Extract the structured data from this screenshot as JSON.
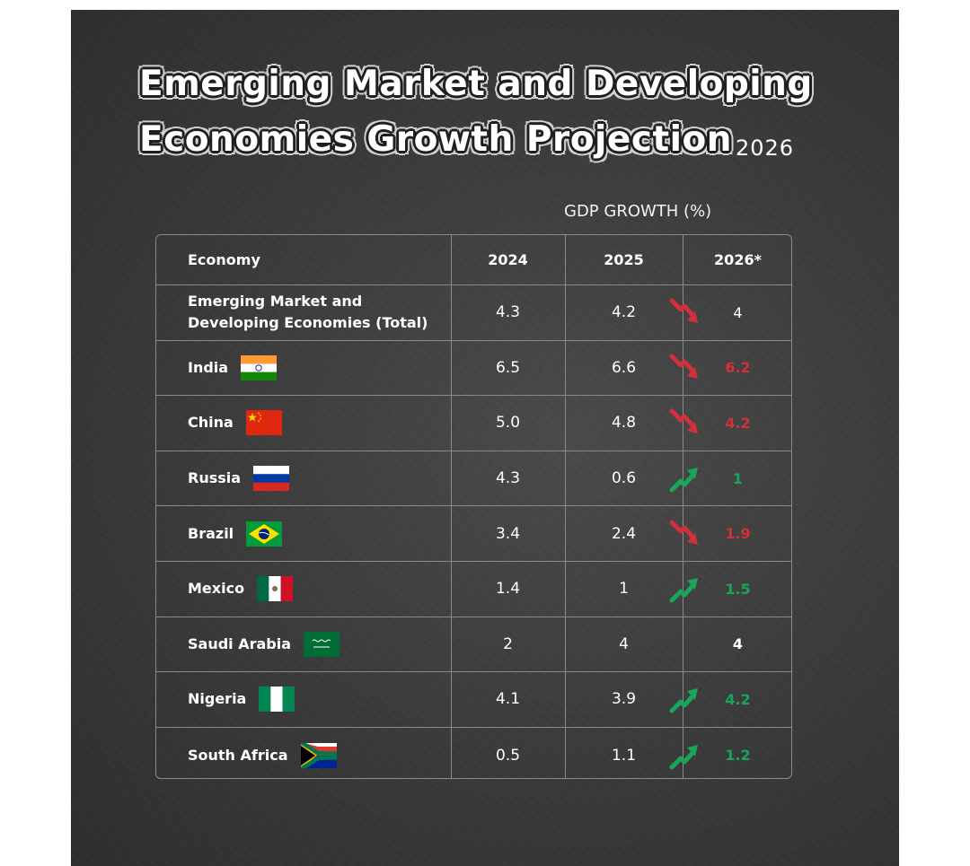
{
  "title": {
    "line1": "Emerging Market and Developing",
    "line2": "Economies Growth Projection",
    "year": "2026"
  },
  "subtitle": "GDP GROWTH (%)",
  "colors": {
    "down": "#d0313b",
    "up": "#1aa55a",
    "background": "#3a3a3a",
    "grid": "#8a8a8a"
  },
  "chart_data": {
    "type": "table",
    "columns": [
      "Economy",
      "2024",
      "2025",
      "2026*"
    ],
    "rows": [
      {
        "economy": "Emerging Market and Developing Economies (Total)",
        "economy_lines": [
          "Emerging Market and",
          "Developing Economies (Total)"
        ],
        "flag": "",
        "y2024": "4.3",
        "y2025": "4.2",
        "y2026": "4",
        "trend": "down"
      },
      {
        "economy": "India",
        "economy_lines": [
          "India"
        ],
        "flag": "india-flag-icon",
        "y2024": "6.5",
        "y2025": "6.6",
        "y2026": "6.2",
        "trend": "down"
      },
      {
        "economy": "China",
        "economy_lines": [
          "China"
        ],
        "flag": "china-flag-icon",
        "y2024": "5.0",
        "y2025": "4.8",
        "y2026": "4.2",
        "trend": "down"
      },
      {
        "economy": "Russia",
        "economy_lines": [
          "Russia"
        ],
        "flag": "russia-flag-icon",
        "y2024": "4.3",
        "y2025": "0.6",
        "y2026": "1",
        "trend": "up"
      },
      {
        "economy": "Brazil",
        "economy_lines": [
          "Brazil"
        ],
        "flag": "brazil-flag-icon",
        "y2024": "3.4",
        "y2025": "2.4",
        "y2026": "1.9",
        "trend": "down"
      },
      {
        "economy": "Mexico",
        "economy_lines": [
          "Mexico"
        ],
        "flag": "mexico-flag-icon",
        "y2024": "1.4",
        "y2025": "1",
        "y2026": "1.5",
        "trend": "up"
      },
      {
        "economy": "Saudi Arabia",
        "economy_lines": [
          "Saudi Arabia"
        ],
        "flag": "saudi-arabia-flag-icon",
        "y2024": "2",
        "y2025": "4",
        "y2026": "4",
        "trend": "flat"
      },
      {
        "economy": "Nigeria",
        "economy_lines": [
          "Nigeria"
        ],
        "flag": "nigeria-flag-icon",
        "y2024": "4.1",
        "y2025": "3.9",
        "y2026": "4.2",
        "trend": "up"
      },
      {
        "economy": "South Africa",
        "economy_lines": [
          "South Africa"
        ],
        "flag": "south-africa-flag-icon",
        "y2024": "0.5",
        "y2025": "1.1",
        "y2026": "1.2",
        "trend": "up"
      }
    ]
  }
}
